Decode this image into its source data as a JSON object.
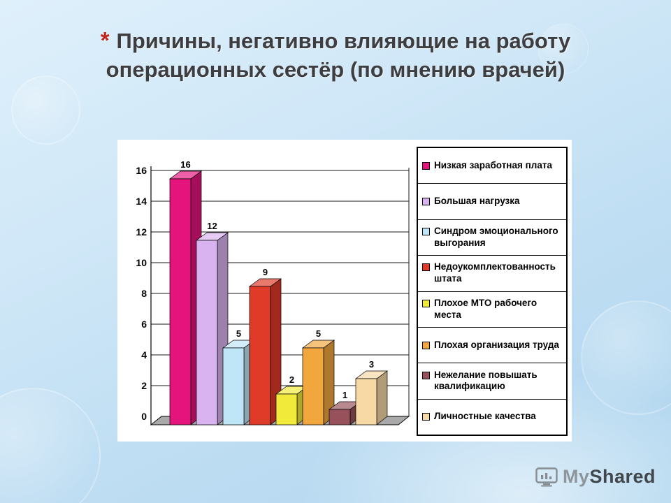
{
  "slide": {
    "marker": "*",
    "title_lines": [
      "Причины, негативно влияющие на работу",
      "операционных сестёр (по мнению врачей)"
    ]
  },
  "chart_data": {
    "type": "bar",
    "style": "3d-column",
    "title": "",
    "categories": [
      "Низкая заработная плата",
      "Большая нагрузка",
      "Синдром эмоционального выгорания",
      "Недоукомплектованность штата",
      "Плохое МТО рабочего места",
      "Плохая организация труда",
      "Нежелание повышать квалификацию",
      "Личностные качества"
    ],
    "values": [
      16,
      12,
      5,
      9,
      2,
      5,
      1,
      3
    ],
    "colors": [
      "#e5147d",
      "#d9b3ef",
      "#bfe6f7",
      "#e03a28",
      "#f2ea3a",
      "#f2a73e",
      "#96515a",
      "#f7d9a6"
    ],
    "ylim": [
      0,
      16
    ],
    "ytick_step": 2,
    "grid": true,
    "data_labels": true,
    "legend_position": "right",
    "floor_color": "#a9a9a9",
    "wall_color": "#ffffff"
  },
  "footer": {
    "logo_my": "My",
    "logo_shared": "Shared"
  }
}
